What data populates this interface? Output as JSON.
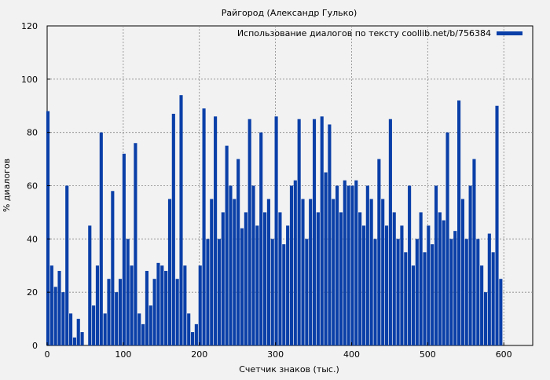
{
  "chart_data": {
    "type": "bar",
    "title": "Райгород (Александр Гулько)",
    "xlabel": "Счетчик знаков (тыс.)",
    "ylabel": "% диалогов",
    "xlim": [
      0,
      638
    ],
    "ylim": [
      0,
      120
    ],
    "xticks": [
      0,
      100,
      200,
      300,
      400,
      500,
      600
    ],
    "yticks": [
      0,
      20,
      40,
      60,
      80,
      100,
      120
    ],
    "grid": true,
    "legend_position": "top-right",
    "series": [
      {
        "name": "Использование диалогов по тексту coollib.net/b/756384",
        "color": "#0a3fa8",
        "x": [
          0,
          5,
          10,
          15,
          20,
          25,
          30,
          35,
          40,
          45,
          50,
          55,
          60,
          65,
          70,
          75,
          80,
          85,
          90,
          95,
          100,
          105,
          110,
          115,
          120,
          125,
          130,
          135,
          140,
          145,
          150,
          155,
          160,
          165,
          170,
          175,
          180,
          185,
          190,
          195,
          200,
          205,
          210,
          215,
          220,
          225,
          230,
          235,
          240,
          245,
          250,
          255,
          260,
          265,
          270,
          275,
          280,
          285,
          290,
          295,
          300,
          305,
          310,
          315,
          320,
          325,
          330,
          335,
          340,
          345,
          350,
          355,
          360,
          365,
          370,
          375,
          380,
          385,
          390,
          395,
          400,
          405,
          410,
          415,
          420,
          425,
          430,
          435,
          440,
          445,
          450,
          455,
          460,
          465,
          470,
          475,
          480,
          485,
          490,
          495,
          500,
          505,
          510,
          515,
          520,
          525,
          530,
          535,
          540,
          545,
          550,
          555,
          560,
          565,
          570,
          575,
          580,
          585,
          590,
          595
        ],
        "values": [
          88,
          30,
          22,
          28,
          20,
          60,
          12,
          3,
          10,
          5,
          0,
          45,
          15,
          30,
          80,
          12,
          25,
          58,
          20,
          25,
          72,
          40,
          30,
          76,
          12,
          8,
          28,
          15,
          25,
          31,
          30,
          28,
          55,
          87,
          25,
          94,
          30,
          12,
          5,
          8,
          30,
          89,
          40,
          55,
          86,
          40,
          50,
          75,
          60,
          55,
          70,
          44,
          50,
          85,
          60,
          45,
          80,
          50,
          55,
          40,
          86,
          50,
          38,
          45,
          60,
          62,
          85,
          55,
          40,
          55,
          85,
          50,
          86,
          65,
          83,
          55,
          60,
          50,
          62,
          60,
          60,
          62,
          50,
          45,
          60,
          55,
          40,
          70,
          55,
          45,
          85,
          50,
          40,
          45,
          35,
          60,
          30,
          40,
          50,
          35,
          45,
          38,
          60,
          50,
          47,
          80,
          40,
          43,
          92,
          55,
          40,
          60,
          70,
          40,
          30,
          20,
          42,
          35,
          90,
          25
        ]
      }
    ]
  }
}
